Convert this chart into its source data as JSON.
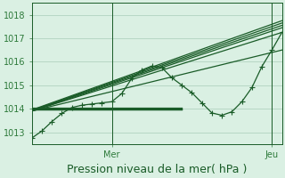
{
  "title": "Pression niveau de la mer( hPa )",
  "background_color": "#daf0e3",
  "grid_color": "#a8cdb8",
  "line_color": "#1a5c28",
  "ylim": [
    1012.5,
    1018.5
  ],
  "xlim": [
    0,
    75
  ],
  "yticks": [
    1013,
    1014,
    1015,
    1016,
    1017,
    1018
  ],
  "xtick_positions": [
    24,
    72
  ],
  "xtick_labels": [
    "Mer",
    "Jeu"
  ],
  "day_lines": [
    24,
    72
  ],
  "wavy_series": [
    [
      0,
      1012.75,
      3,
      1013.05,
      6,
      1013.45,
      9,
      1013.8,
      12,
      1014.05,
      15,
      1014.15,
      18,
      1014.2,
      21,
      1014.25,
      24,
      1014.3,
      27,
      1014.65,
      30,
      1015.3,
      33,
      1015.65,
      36,
      1015.82,
      39,
      1015.75,
      42,
      1015.32,
      45,
      1015.0,
      48,
      1014.68,
      51,
      1014.25,
      54,
      1013.82,
      57,
      1013.72,
      60,
      1013.87,
      63,
      1014.3,
      66,
      1014.9,
      69,
      1015.8,
      72,
      1016.5,
      75,
      1017.25
    ]
  ],
  "straight_lines": [
    [
      [
        0,
        1013.9
      ],
      [
        75,
        1017.25
      ]
    ],
    [
      [
        0,
        1013.9
      ],
      [
        75,
        1017.45
      ]
    ],
    [
      [
        0,
        1013.92
      ],
      [
        75,
        1017.55
      ]
    ],
    [
      [
        0,
        1013.93
      ],
      [
        75,
        1017.65
      ]
    ],
    [
      [
        0,
        1013.95
      ],
      [
        75,
        1017.75
      ]
    ],
    [
      [
        0,
        1013.9
      ],
      [
        75,
        1016.5
      ]
    ]
  ],
  "flat_lines": [
    [
      [
        0,
        1013.95
      ],
      [
        45,
        1013.95
      ]
    ],
    [
      [
        0,
        1013.97
      ],
      [
        45,
        1013.97
      ]
    ],
    [
      [
        0,
        1013.99
      ],
      [
        45,
        1013.99
      ]
    ],
    [
      [
        0,
        1014.01
      ],
      [
        45,
        1014.01
      ]
    ],
    [
      [
        0,
        1014.03
      ],
      [
        45,
        1014.03
      ]
    ]
  ],
  "linewidth": 0.9,
  "title_fontsize": 9,
  "tick_fontsize": 7,
  "tick_color": "#2d7a3a",
  "marker_style": "+",
  "marker_size": 4.5,
  "marker_color": "#1a5c28"
}
